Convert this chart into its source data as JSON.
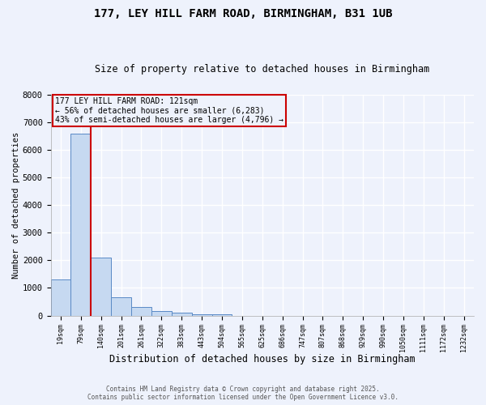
{
  "title1": "177, LEY HILL FARM ROAD, BIRMINGHAM, B31 1UB",
  "title2": "Size of property relative to detached houses in Birmingham",
  "xlabel": "Distribution of detached houses by size in Birmingham",
  "ylabel": "Number of detached properties",
  "categories": [
    "19sqm",
    "79sqm",
    "140sqm",
    "201sqm",
    "261sqm",
    "322sqm",
    "383sqm",
    "443sqm",
    "504sqm",
    "565sqm",
    "625sqm",
    "686sqm",
    "747sqm",
    "807sqm",
    "868sqm",
    "929sqm",
    "990sqm",
    "1050sqm",
    "1111sqm",
    "1172sqm",
    "1232sqm"
  ],
  "values": [
    1300,
    6600,
    2100,
    650,
    300,
    150,
    100,
    50,
    30,
    0,
    0,
    0,
    0,
    0,
    0,
    0,
    0,
    0,
    0,
    0,
    0
  ],
  "bar_color": "#c6d9f1",
  "bar_edge_color": "#5a8ac6",
  "vline_color": "#cc0000",
  "annotation_text": "177 LEY HILL FARM ROAD: 121sqm\n← 56% of detached houses are smaller (6,283)\n43% of semi-detached houses are larger (4,796) →",
  "annotation_box_color": "#cc0000",
  "ylim": [
    0,
    8000
  ],
  "yticks": [
    0,
    1000,
    2000,
    3000,
    4000,
    5000,
    6000,
    7000,
    8000
  ],
  "background_color": "#eef2fc",
  "grid_color": "#ffffff",
  "footer1": "Contains HM Land Registry data © Crown copyright and database right 2025.",
  "footer2": "Contains public sector information licensed under the Open Government Licence v3.0."
}
